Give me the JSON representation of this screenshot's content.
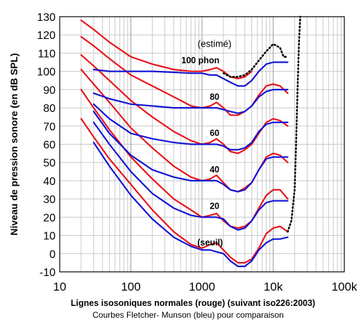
{
  "chart_data": {
    "type": "line",
    "xlabel": "Lignes isosoniques normales (rouge) (suivant iso226:2003)",
    "caption": "Courbes Fletcher- Munson (bleu) pour comparaison",
    "ylabel": "Niveau de pression sonore (en dB SPL)",
    "xscale": "log",
    "xlim": [
      10,
      100000
    ],
    "ylim": [
      -10,
      130
    ],
    "grid": true,
    "y_ticks": [
      "-10",
      "0",
      "10",
      "20",
      "30",
      "40",
      "50",
      "60",
      "70",
      "80",
      "90",
      "100",
      "110",
      "120",
      "130"
    ],
    "x_ticks": [
      "10",
      "100",
      "1000",
      "10k",
      "100k"
    ],
    "colors": {
      "iso226": "#e8141b",
      "fletcher": "#1414d4",
      "estimated": "#000000",
      "grid": "#c8c8c8"
    },
    "annotations": [
      {
        "text": "(estimé)",
        "x": 1500,
        "y": 113.5,
        "bold": false
      },
      {
        "text": "100 phon",
        "x": 950,
        "y": 104.5,
        "bold": true
      },
      {
        "text": "80",
        "x": 1500,
        "y": 84.5,
        "bold": true
      },
      {
        "text": "60",
        "x": 1500,
        "y": 64.5,
        "bold": true
      },
      {
        "text": "40",
        "x": 1500,
        "y": 44.5,
        "bold": true
      },
      {
        "text": "20",
        "x": 1500,
        "y": 24.5,
        "bold": true
      },
      {
        "text": "(seuil)",
        "x": 1300,
        "y": 4.5,
        "bold": true
      }
    ],
    "series": [
      {
        "group": "iso226",
        "points": [
          [
            20,
            74
          ],
          [
            30,
            64
          ],
          [
            50,
            52
          ],
          [
            100,
            38
          ],
          [
            200,
            24
          ],
          [
            400,
            12
          ],
          [
            700,
            5
          ],
          [
            1000,
            3
          ],
          [
            1300,
            5
          ],
          [
            1600,
            6
          ],
          [
            2000,
            2
          ],
          [
            2500,
            -2
          ],
          [
            3200,
            -5
          ],
          [
            4000,
            -5
          ],
          [
            5000,
            -3
          ],
          [
            6300,
            3
          ],
          [
            8000,
            11
          ],
          [
            10000,
            14
          ],
          [
            12500,
            15
          ],
          [
            16000,
            12
          ]
        ]
      },
      {
        "group": "iso226",
        "points": [
          [
            20,
            90
          ],
          [
            30,
            80
          ],
          [
            50,
            68
          ],
          [
            100,
            53
          ],
          [
            200,
            41
          ],
          [
            400,
            30
          ],
          [
            700,
            24
          ],
          [
            1000,
            20
          ],
          [
            1300,
            21
          ],
          [
            1600,
            22
          ],
          [
            2000,
            18
          ],
          [
            2500,
            15
          ],
          [
            3200,
            14
          ],
          [
            4000,
            15
          ],
          [
            5000,
            18
          ],
          [
            6300,
            25
          ],
          [
            8000,
            32
          ],
          [
            10000,
            35
          ],
          [
            12500,
            35
          ],
          [
            16000,
            30
          ]
        ]
      },
      {
        "group": "iso226",
        "points": [
          [
            20,
            101
          ],
          [
            30,
            93
          ],
          [
            50,
            83
          ],
          [
            100,
            69
          ],
          [
            200,
            58
          ],
          [
            400,
            48
          ],
          [
            700,
            42
          ],
          [
            1000,
            40
          ],
          [
            1300,
            41
          ],
          [
            1600,
            43
          ],
          [
            2000,
            39
          ],
          [
            2500,
            35
          ],
          [
            3200,
            34
          ],
          [
            4000,
            36
          ],
          [
            5000,
            39
          ],
          [
            6300,
            46
          ],
          [
            8000,
            53
          ],
          [
            10000,
            55
          ],
          [
            12500,
            54
          ],
          [
            16000,
            50
          ]
        ]
      },
      {
        "group": "iso226",
        "points": [
          [
            20,
            109
          ],
          [
            30,
            103
          ],
          [
            50,
            95
          ],
          [
            100,
            84
          ],
          [
            200,
            75
          ],
          [
            400,
            67
          ],
          [
            700,
            62
          ],
          [
            1000,
            60
          ],
          [
            1300,
            61
          ],
          [
            1600,
            63
          ],
          [
            2000,
            60
          ],
          [
            2500,
            56
          ],
          [
            3200,
            55
          ],
          [
            4000,
            57
          ],
          [
            5000,
            60
          ],
          [
            6300,
            66
          ],
          [
            8000,
            72
          ],
          [
            10000,
            74
          ],
          [
            12500,
            73
          ],
          [
            16000,
            70
          ]
        ]
      },
      {
        "group": "iso226",
        "points": [
          [
            20,
            119
          ],
          [
            30,
            114
          ],
          [
            50,
            107
          ],
          [
            100,
            98
          ],
          [
            200,
            92
          ],
          [
            400,
            86
          ],
          [
            700,
            81
          ],
          [
            1000,
            80
          ],
          [
            1300,
            81
          ],
          [
            1600,
            83
          ],
          [
            2000,
            80
          ],
          [
            2500,
            76
          ],
          [
            3200,
            76
          ],
          [
            4000,
            78
          ],
          [
            5000,
            81
          ],
          [
            6300,
            87
          ],
          [
            8000,
            92
          ],
          [
            10000,
            93
          ],
          [
            12500,
            92
          ],
          [
            16000,
            88
          ]
        ]
      },
      {
        "group": "iso226",
        "points": [
          [
            20,
            128
          ],
          [
            30,
            123
          ],
          [
            50,
            116
          ],
          [
            100,
            108
          ],
          [
            200,
            104
          ],
          [
            400,
            101
          ],
          [
            700,
            100
          ],
          [
            1000,
            100
          ],
          [
            1300,
            101
          ],
          [
            1600,
            102
          ],
          [
            2000,
            100
          ],
          [
            2500,
            97
          ],
          [
            3200,
            96
          ],
          [
            4000,
            97
          ],
          [
            5000,
            100
          ]
        ]
      },
      {
        "group": "fletcher",
        "points": [
          [
            30,
            61
          ],
          [
            50,
            48
          ],
          [
            100,
            32
          ],
          [
            200,
            19
          ],
          [
            400,
            9
          ],
          [
            700,
            4
          ],
          [
            1000,
            2
          ],
          [
            1300,
            2
          ],
          [
            1600,
            1
          ],
          [
            2000,
            0
          ],
          [
            2500,
            -4
          ],
          [
            3200,
            -7
          ],
          [
            4000,
            -7
          ],
          [
            5000,
            -4
          ],
          [
            6300,
            2
          ],
          [
            8000,
            6
          ],
          [
            10000,
            8
          ],
          [
            12500,
            8
          ],
          [
            16000,
            9
          ]
        ]
      },
      {
        "group": "fletcher",
        "points": [
          [
            30,
            72
          ],
          [
            50,
            60
          ],
          [
            100,
            45
          ],
          [
            200,
            33
          ],
          [
            400,
            25
          ],
          [
            700,
            21
          ],
          [
            1000,
            20
          ],
          [
            1300,
            20
          ],
          [
            1600,
            20
          ],
          [
            2000,
            19
          ],
          [
            2500,
            15
          ],
          [
            3200,
            13
          ],
          [
            4000,
            14
          ],
          [
            5000,
            18
          ],
          [
            6300,
            24
          ],
          [
            8000,
            28
          ],
          [
            10000,
            29
          ],
          [
            12500,
            29
          ],
          [
            16000,
            29
          ]
        ]
      },
      {
        "group": "fletcher",
        "points": [
          [
            30,
            78
          ],
          [
            50,
            66
          ],
          [
            100,
            54
          ],
          [
            200,
            46
          ],
          [
            400,
            42
          ],
          [
            700,
            40
          ],
          [
            1000,
            40
          ],
          [
            1300,
            40
          ],
          [
            1600,
            40
          ],
          [
            2000,
            38
          ],
          [
            2500,
            35
          ],
          [
            3200,
            34
          ],
          [
            4000,
            35
          ],
          [
            5000,
            39
          ],
          [
            6300,
            46
          ],
          [
            8000,
            52
          ],
          [
            10000,
            53
          ],
          [
            12500,
            53
          ],
          [
            16000,
            53
          ]
        ]
      },
      {
        "group": "fletcher",
        "points": [
          [
            30,
            82
          ],
          [
            50,
            74
          ],
          [
            100,
            66
          ],
          [
            200,
            63
          ],
          [
            400,
            61
          ],
          [
            700,
            60
          ],
          [
            1000,
            60
          ],
          [
            1300,
            60
          ],
          [
            1600,
            60
          ],
          [
            2000,
            59
          ],
          [
            2500,
            57
          ],
          [
            3200,
            57
          ],
          [
            4000,
            58
          ],
          [
            5000,
            61
          ],
          [
            6300,
            67
          ],
          [
            8000,
            71
          ],
          [
            10000,
            72
          ],
          [
            12500,
            72
          ],
          [
            16000,
            72
          ]
        ]
      },
      {
        "group": "fletcher",
        "points": [
          [
            30,
            88
          ],
          [
            50,
            85
          ],
          [
            100,
            82
          ],
          [
            200,
            81
          ],
          [
            400,
            80
          ],
          [
            700,
            80
          ],
          [
            1000,
            80
          ],
          [
            1300,
            80
          ],
          [
            1600,
            80
          ],
          [
            2000,
            79
          ],
          [
            2500,
            78
          ],
          [
            3200,
            77
          ],
          [
            4000,
            78
          ],
          [
            5000,
            81
          ],
          [
            6300,
            86
          ],
          [
            8000,
            89
          ],
          [
            10000,
            90
          ],
          [
            12500,
            90
          ],
          [
            16000,
            90
          ]
        ]
      },
      {
        "group": "fletcher",
        "points": [
          [
            30,
            101
          ],
          [
            50,
            100
          ],
          [
            100,
            100
          ],
          [
            200,
            100
          ],
          [
            400,
            99.5
          ],
          [
            700,
            99
          ],
          [
            1000,
            99
          ],
          [
            1300,
            98
          ],
          [
            1600,
            98
          ],
          [
            2000,
            96
          ],
          [
            2500,
            94
          ],
          [
            3200,
            92
          ],
          [
            4000,
            92
          ],
          [
            5000,
            95
          ],
          [
            6300,
            100
          ],
          [
            8000,
            104
          ],
          [
            10000,
            105
          ],
          [
            12500,
            105
          ],
          [
            16000,
            105
          ]
        ]
      },
      {
        "group": "estimated",
        "points": [
          [
            2000,
            99
          ],
          [
            2500,
            97
          ],
          [
            3200,
            97
          ],
          [
            4000,
            98
          ],
          [
            5000,
            101
          ],
          [
            6300,
            106
          ],
          [
            8000,
            111
          ],
          [
            10000,
            115
          ],
          [
            12500,
            113
          ],
          [
            14000,
            108
          ],
          [
            16000,
            108
          ]
        ]
      },
      {
        "group": "estimated",
        "points": [
          [
            16000,
            12
          ],
          [
            18000,
            18
          ],
          [
            20000,
            35
          ],
          [
            21000,
            60
          ],
          [
            22000,
            90
          ],
          [
            23000,
            115
          ],
          [
            24000,
            130
          ]
        ]
      }
    ]
  }
}
